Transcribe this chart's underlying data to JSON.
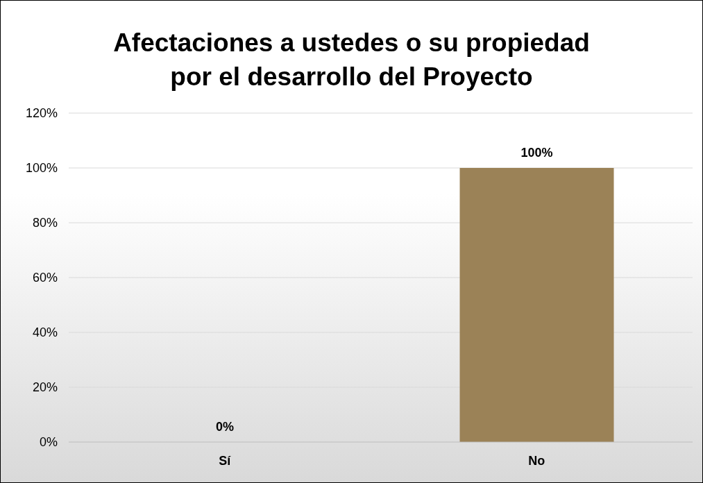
{
  "chart_data": {
    "type": "bar",
    "title": "Afectaciones a ustedes o su propiedad por el desarrollo del Proyecto",
    "categories": [
      "Sí",
      "No"
    ],
    "values": [
      0,
      100
    ],
    "value_labels": [
      "0%",
      "100%"
    ],
    "color": "#9b8257",
    "ylim": [
      0,
      120
    ],
    "yticks": [
      {
        "value": 0,
        "label": "0%"
      },
      {
        "value": 20,
        "label": "20%"
      },
      {
        "value": 40,
        "label": "40%"
      },
      {
        "value": 60,
        "label": "60%"
      },
      {
        "value": 80,
        "label": "80%"
      },
      {
        "value": 100,
        "label": "100%"
      },
      {
        "value": 120,
        "label": "120%"
      }
    ],
    "grid": "y",
    "legend": false
  }
}
